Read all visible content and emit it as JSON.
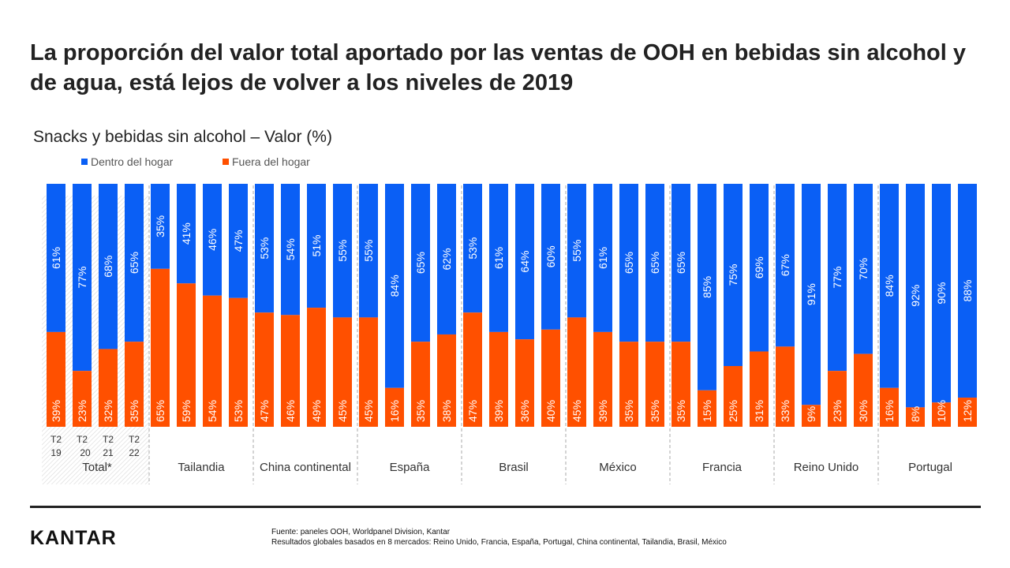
{
  "title": "La proporción del valor total aportado por las ventas de OOH en bebidas sin alcohol y de agua, está lejos de volver a los niveles de 2019",
  "footer": {
    "logo": "KANTAR",
    "source": "Fuente: paneles OOH, Worldpanel Division, Kantar",
    "note": "Resultados globales basados en 8 mercados: Reino Unido, Francia, España, Portugal, China continental, Tailandia,  Brasil, México"
  },
  "chart_data": {
    "type": "bar",
    "stacked": true,
    "percent": true,
    "title": "Snacks y bebidas sin alcohol – Valor (%)",
    "ylim": [
      0,
      100
    ],
    "grid": false,
    "legend_position": "top-left",
    "colors": {
      "Dentro del hogar": "#0A5FF5",
      "Fuera del hogar": "#FF5000"
    },
    "period_labels": [
      [
        "T2",
        "19"
      ],
      [
        "T2",
        "20"
      ],
      [
        "T2",
        "21"
      ],
      [
        "T2",
        "22"
      ]
    ],
    "groups": [
      {
        "name": "Total*",
        "fuera": [
          39,
          23,
          32,
          35
        ],
        "dentro": [
          61,
          77,
          68,
          65
        ]
      },
      {
        "name": "Tailandia",
        "fuera": [
          65,
          59,
          54,
          53
        ],
        "dentro": [
          35,
          41,
          46,
          47
        ]
      },
      {
        "name": "China continental",
        "fuera": [
          47,
          46,
          49,
          45
        ],
        "dentro": [
          53,
          54,
          51,
          55
        ]
      },
      {
        "name": "España",
        "fuera": [
          45,
          16,
          35,
          38
        ],
        "dentro": [
          55,
          84,
          65,
          62
        ]
      },
      {
        "name": "Brasil",
        "fuera": [
          47,
          39,
          36,
          40
        ],
        "dentro": [
          53,
          61,
          64,
          60
        ]
      },
      {
        "name": "México",
        "fuera": [
          45,
          39,
          35,
          35
        ],
        "dentro": [
          55,
          61,
          65,
          65
        ]
      },
      {
        "name": "Francia",
        "fuera": [
          35,
          15,
          25,
          31
        ],
        "dentro": [
          65,
          85,
          75,
          69
        ]
      },
      {
        "name": "Reino Unido",
        "fuera": [
          33,
          9,
          23,
          30
        ],
        "dentro": [
          67,
          91,
          77,
          70
        ]
      },
      {
        "name": "Portugal",
        "fuera": [
          16,
          8,
          10,
          12
        ],
        "dentro": [
          84,
          92,
          90,
          88
        ]
      }
    ],
    "series": [
      {
        "name": "Dentro del hogar"
      },
      {
        "name": "Fuera del hogar"
      }
    ]
  }
}
